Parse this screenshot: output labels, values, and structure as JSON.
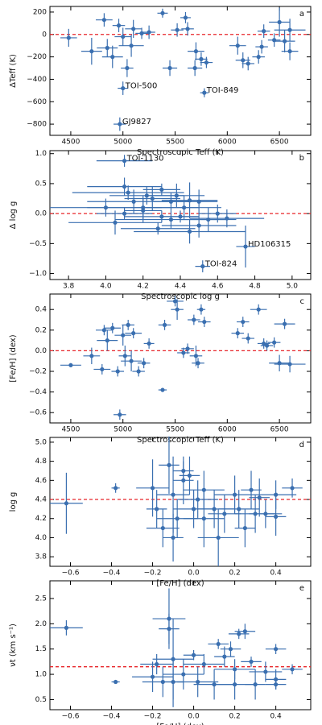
{
  "chart_data": [
    {
      "type": "scatter",
      "panel": "a",
      "xlabel": "Spectroscopic Teff (K)",
      "ylabel": "ΔTeff (K)",
      "color": "#3a6fb0",
      "hline": 0,
      "hline_color": "#e8262a",
      "xlim": [
        4300,
        6800
      ],
      "xticks": [
        4500,
        5000,
        5500,
        6000,
        6500
      ],
      "ylim": [
        -900,
        250
      ],
      "yticks": [
        {
          "value": -800,
          "label": "−800"
        },
        {
          "value": -600,
          "label": "−600"
        },
        {
          "value": -400,
          "label": "−400"
        },
        {
          "value": -200,
          "label": "−200"
        },
        0,
        200
      ],
      "x": [
        4480,
        4700,
        4820,
        4850,
        4900,
        4960,
        5000,
        4970,
        5000,
        5040,
        5080,
        5100,
        5180,
        5250,
        5380,
        5450,
        5520,
        5600,
        5620,
        5690,
        5700,
        5750,
        5780,
        5800,
        6100,
        6150,
        6200,
        6300,
        6330,
        6350,
        6450,
        6500,
        6550,
        6600,
        6600
      ],
      "values": [
        -30,
        -150,
        130,
        -120,
        -200,
        80,
        -480,
        -800,
        -20,
        -300,
        -100,
        50,
        10,
        20,
        190,
        -300,
        40,
        150,
        50,
        -300,
        -150,
        -220,
        -520,
        -250,
        -100,
        -230,
        -260,
        -200,
        -110,
        30,
        -50,
        110,
        -60,
        40,
        -150
      ],
      "xerr": [
        80,
        100,
        80,
        100,
        100,
        60,
        50,
        60,
        80,
        60,
        120,
        80,
        60,
        60,
        50,
        70,
        60,
        50,
        60,
        70,
        80,
        60,
        40,
        60,
        80,
        70,
        60,
        60,
        60,
        60,
        60,
        100,
        100,
        150,
        80
      ],
      "yerr": [
        80,
        120,
        60,
        80,
        100,
        60,
        60,
        60,
        80,
        80,
        100,
        80,
        50,
        60,
        40,
        70,
        60,
        50,
        60,
        70,
        80,
        60,
        40,
        50,
        80,
        70,
        60,
        60,
        60,
        60,
        60,
        130,
        100,
        100,
        80
      ],
      "annotations": [
        "TOI-500",
        "GJ9827",
        "TOI-849"
      ]
    },
    {
      "type": "scatter",
      "panel": "b",
      "xlabel": "Spectroscopic log g",
      "ylabel": "Δ log g",
      "color": "#3a6fb0",
      "hline": 0,
      "hline_color": "#e8262a",
      "xlim": [
        3.7,
        5.1
      ],
      "xticks": [
        3.8,
        {
          "value": 4,
          "label": "4.0"
        },
        4.2,
        4.4,
        4.6,
        4.8,
        {
          "value": 5,
          "label": "5.0"
        }
      ],
      "ylim": [
        -1.1,
        1.05
      ],
      "yticks": [
        {
          "value": -1,
          "label": "−1.0"
        },
        {
          "value": -0.5,
          "label": "−0.5"
        },
        {
          "value": 0,
          "label": "0.0"
        },
        0.5,
        {
          "value": 1,
          "label": "1.0"
        }
      ],
      "x": [
        4.1,
        4.1,
        4.12,
        4.15,
        4.2,
        4.22,
        4.25,
        4.3,
        4.3,
        4.35,
        4.35,
        4.38,
        4.4,
        4.42,
        4.45,
        4.5,
        4.5,
        4.52,
        4.55,
        4.6,
        4.65,
        4.75,
        4.0,
        4.05,
        4.28,
        4.45,
        4.2,
        4.1
      ],
      "values": [
        0.88,
        0.45,
        0.35,
        0.2,
        0.1,
        0.3,
        0.25,
        0.4,
        -0.05,
        0.2,
        -0.1,
        0.3,
        -0.05,
        0.1,
        0.22,
        0.2,
        -0.2,
        -0.88,
        -0.1,
        0,
        -0.08,
        -0.55,
        0.1,
        -0.15,
        -0.25,
        -0.3,
        0.05,
        0
      ],
      "xerr": [
        0.15,
        0.2,
        0.3,
        0.25,
        0.3,
        0.2,
        0.15,
        0.1,
        0.2,
        0.1,
        0.3,
        0.15,
        0.1,
        0.2,
        0.15,
        0.1,
        0.2,
        0.04,
        0.15,
        0.1,
        0.2,
        0.05,
        0.3,
        0.25,
        0.2,
        0.3,
        0.1,
        0.15
      ],
      "yerr": [
        0.1,
        0.15,
        0.12,
        0.2,
        0.2,
        0.15,
        0.2,
        0.1,
        0.1,
        0.15,
        0.15,
        0.2,
        0.1,
        0.2,
        0.3,
        0.2,
        0.2,
        0.1,
        0.2,
        0.15,
        0.15,
        0.35,
        0.15,
        0.2,
        0.1,
        0.2,
        0.2,
        0.1
      ],
      "annotations": [
        "TOI-1130",
        "HD106315",
        "TOI-824"
      ]
    },
    {
      "type": "scatter",
      "panel": "c",
      "xlabel": "Spectroscopic Teff (K)",
      "ylabel": "[Fe/H] (dex)",
      "color": "#3a6fb0",
      "hline": 0,
      "hline_color": "#e8262a",
      "xlim": [
        4300,
        6800
      ],
      "xticks": [
        4500,
        5000,
        5500,
        6000,
        6500
      ],
      "ylim": [
        -0.7,
        0.55
      ],
      "yticks": [
        {
          "value": -0.6,
          "label": "−0.6"
        },
        {
          "value": -0.4,
          "label": "−0.4"
        },
        {
          "value": -0.2,
          "label": "−0.2"
        },
        {
          "value": 0,
          "label": "0.0"
        },
        0.2,
        0.4
      ],
      "x": [
        4500,
        4700,
        4800,
        4820,
        4850,
        4900,
        4950,
        4970,
        5000,
        5020,
        5050,
        5080,
        5100,
        5150,
        5200,
        5250,
        5380,
        5400,
        5500,
        5520,
        5580,
        5620,
        5680,
        5700,
        5720,
        5750,
        5780,
        6100,
        6150,
        6200,
        6300,
        6350,
        6380,
        6450,
        6500,
        6550,
        6600
      ],
      "values": [
        -0.14,
        -0.05,
        -0.18,
        0.2,
        0.1,
        0.22,
        -0.2,
        -0.62,
        0.15,
        -0.05,
        0.25,
        -0.1,
        0.17,
        -0.2,
        -0.12,
        0.07,
        -0.38,
        0.25,
        0.48,
        0.4,
        -0.02,
        0.02,
        0.3,
        -0.05,
        -0.12,
        0.4,
        0.28,
        0.17,
        0.28,
        0.12,
        0.4,
        0.07,
        0.05,
        0.08,
        -0.12,
        0.26,
        -0.13
      ],
      "xerr": [
        100,
        80,
        80,
        80,
        100,
        80,
        60,
        60,
        80,
        60,
        60,
        100,
        80,
        60,
        60,
        50,
        40,
        60,
        80,
        60,
        60,
        60,
        60,
        60,
        60,
        40,
        60,
        60,
        60,
        60,
        80,
        60,
        60,
        60,
        100,
        100,
        150
      ],
      "yerr": [
        0.02,
        0.08,
        0.05,
        0.05,
        0.1,
        0.05,
        0.05,
        0.05,
        0.1,
        0.1,
        0.05,
        0.1,
        0.05,
        0.05,
        0.05,
        0.05,
        0.02,
        0.05,
        0.05,
        0.1,
        0.05,
        0.05,
        0.05,
        0.1,
        0.05,
        0.05,
        0.05,
        0.05,
        0.05,
        0.05,
        0.05,
        0.05,
        0.05,
        0.05,
        0.08,
        0.05,
        0.08
      ]
    },
    {
      "type": "scatter",
      "panel": "d",
      "xlabel": "[Fe/H] (dex)",
      "ylabel": "log g",
      "color": "#3a6fb0",
      "hline": 4.4,
      "hline_color": "#e8262a",
      "xlim": [
        -0.7,
        0.57
      ],
      "xticks": [
        {
          "value": -0.6,
          "label": "−0.6"
        },
        {
          "value": -0.4,
          "label": "−0.4"
        },
        {
          "value": -0.2,
          "label": "−0.2"
        },
        {
          "value": 0,
          "label": "0.0"
        },
        0.2,
        0.4
      ],
      "ylim": [
        3.7,
        5.05
      ],
      "yticks": [
        3.8,
        {
          "value": 4,
          "label": "4.0"
        },
        4.2,
        4.4,
        4.6,
        4.8,
        {
          "value": 5,
          "label": "5.0"
        }
      ],
      "x": [
        -0.62,
        -0.38,
        -0.2,
        -0.18,
        -0.15,
        -0.12,
        -0.1,
        -0.1,
        -0.08,
        -0.05,
        -0.02,
        0,
        0.02,
        0.05,
        0.1,
        0.12,
        0.15,
        0.2,
        0.22,
        0.25,
        0.28,
        0.3,
        0.32,
        0.35,
        0.4,
        0.4,
        0.48,
        -0.05,
        0.05
      ],
      "values": [
        4.36,
        4.52,
        4.52,
        4.3,
        4.1,
        4.76,
        4.45,
        4.0,
        4.2,
        4.6,
        4.65,
        4.3,
        4.4,
        4.2,
        4.3,
        4.0,
        4.25,
        4.45,
        4.3,
        4.1,
        4.5,
        4.25,
        4.42,
        4.25,
        4.45,
        4.22,
        4.52,
        4.7,
        4.5
      ],
      "xerr": [
        0.08,
        0.02,
        0.08,
        0.05,
        0.08,
        0.05,
        0.08,
        0.05,
        0.1,
        0.05,
        0.05,
        0.1,
        0.1,
        0.1,
        0.1,
        0.1,
        0.08,
        0.1,
        0.1,
        0.05,
        0.05,
        0.1,
        0.05,
        0.08,
        0.1,
        0.05,
        0.05,
        0.05,
        0.1
      ],
      "yerr": [
        0.32,
        0.05,
        0.3,
        0.2,
        0.2,
        0.3,
        0.4,
        0.25,
        0.2,
        0.25,
        0.2,
        0.2,
        0.2,
        0.3,
        0.2,
        0.3,
        0.2,
        0.2,
        0.2,
        0.2,
        0.2,
        0.2,
        0.2,
        0.15,
        0.15,
        0.2,
        0.1,
        0.1,
        0.2
      ]
    },
    {
      "type": "scatter",
      "panel": "e",
      "xlabel": "[Fe/H] (dex)",
      "ylabel": "νt (km s⁻¹)",
      "color": "#3a6fb0",
      "hline": 1.15,
      "hline_color": "#e8262a",
      "xlim": [
        -0.7,
        0.57
      ],
      "xticks": [
        {
          "value": -0.6,
          "label": "−0.6"
        },
        {
          "value": -0.4,
          "label": "−0.4"
        },
        {
          "value": -0.2,
          "label": "−0.2"
        },
        {
          "value": 0,
          "label": "0.0"
        },
        0.2,
        0.4
      ],
      "ylim": [
        0.3,
        2.85
      ],
      "yticks": [
        0.5,
        {
          "value": 1,
          "label": "1.0"
        },
        1.5,
        {
          "value": 2,
          "label": "2.0"
        },
        2.5
      ],
      "x": [
        -0.62,
        -0.38,
        -0.2,
        -0.18,
        -0.15,
        -0.12,
        -0.1,
        -0.1,
        -0.05,
        0,
        0.02,
        0.05,
        0.1,
        0.12,
        0.15,
        0.18,
        0.2,
        0.22,
        0.25,
        0.28,
        0.3,
        0.35,
        0.4,
        0.4,
        0.4,
        0.48,
        -0.12,
        0.2
      ],
      "values": [
        1.92,
        0.85,
        0.95,
        1.2,
        0.85,
        2.1,
        1.3,
        0.85,
        1.0,
        1.38,
        0.85,
        1.2,
        0.8,
        1.6,
        1.35,
        1.5,
        0.8,
        1.8,
        1.85,
        1.25,
        0.8,
        1.05,
        1.5,
        0.9,
        0.8,
        1.1,
        1.9,
        1.1
      ],
      "xerr": [
        0.08,
        0.02,
        0.1,
        0.08,
        0.1,
        0.08,
        0.1,
        0.05,
        0.1,
        0.05,
        0.1,
        0.1,
        0.1,
        0.05,
        0.05,
        0.05,
        0.1,
        0.05,
        0.05,
        0.05,
        0.05,
        0.08,
        0.05,
        0.05,
        0.05,
        0.05,
        0.05,
        0.1
      ],
      "yerr": [
        0.15,
        0.03,
        0.3,
        0.2,
        0.3,
        0.6,
        0.8,
        0.5,
        0.3,
        0.1,
        0.3,
        0.2,
        0.3,
        0.1,
        0.2,
        0.15,
        0.3,
        0.1,
        0.15,
        0.1,
        0.3,
        0.2,
        0.1,
        0.2,
        0.1,
        0.1,
        0.3,
        0.2
      ]
    }
  ]
}
